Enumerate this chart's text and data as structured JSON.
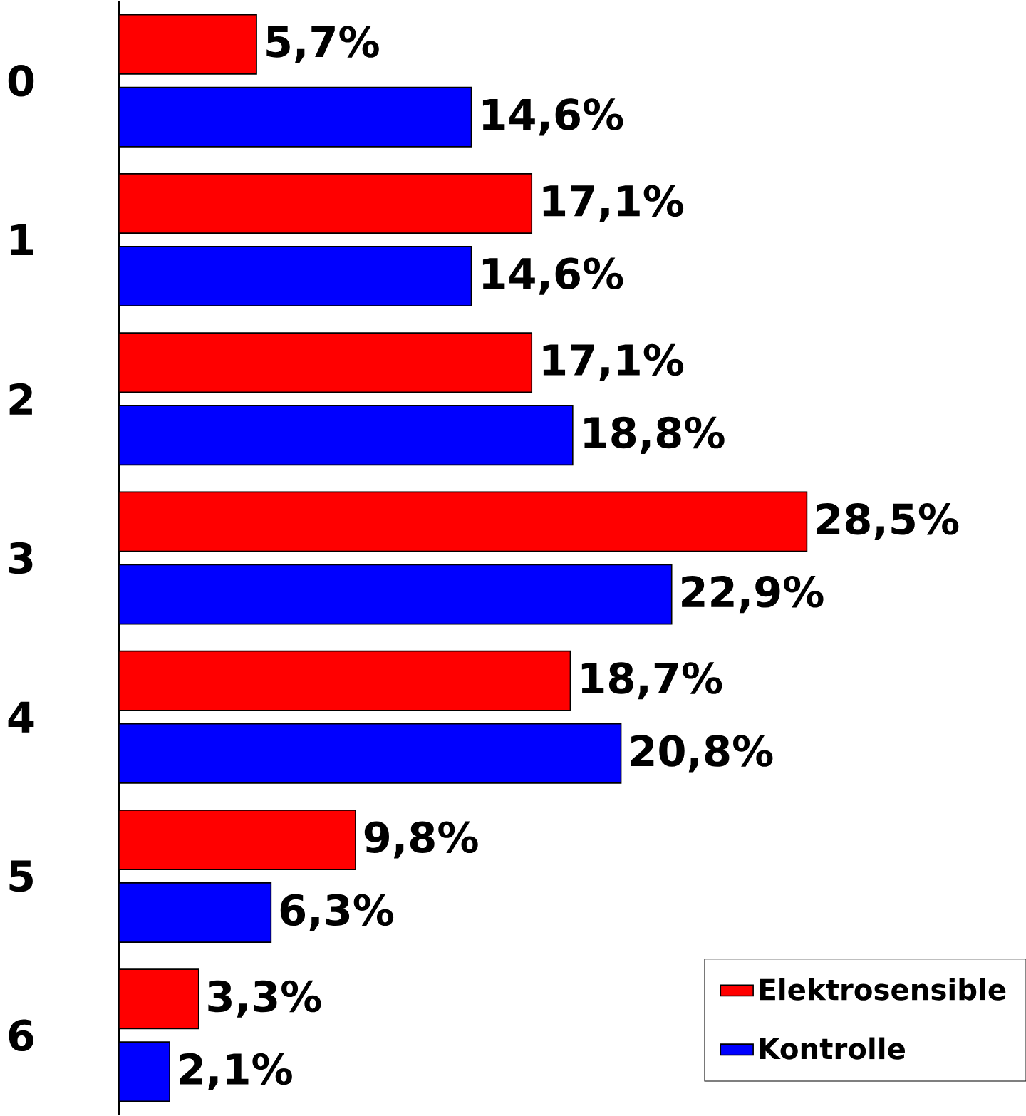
{
  "chart_data": {
    "type": "bar",
    "orientation": "horizontal",
    "categories": [
      "0",
      "1",
      "2",
      "3",
      "4",
      "5",
      "6"
    ],
    "series": [
      {
        "name": "Elektrosensible",
        "color": "#ff0000",
        "values": [
          5.7,
          17.1,
          17.1,
          28.5,
          18.7,
          9.8,
          3.3
        ],
        "value_labels": [
          "5,7%",
          "17,1%",
          "17,1%",
          "28,5%",
          "18,7%",
          "9,8%",
          "3,3%"
        ]
      },
      {
        "name": "Kontrolle",
        "color": "#0000ff",
        "values": [
          14.6,
          14.6,
          18.8,
          22.9,
          20.8,
          6.3,
          2.1
        ],
        "value_labels": [
          "14,6%",
          "14,6%",
          "18,8%",
          "22,9%",
          "20,8%",
          "6,3%",
          "2,1%"
        ]
      }
    ],
    "legend": "bottom right"
  }
}
